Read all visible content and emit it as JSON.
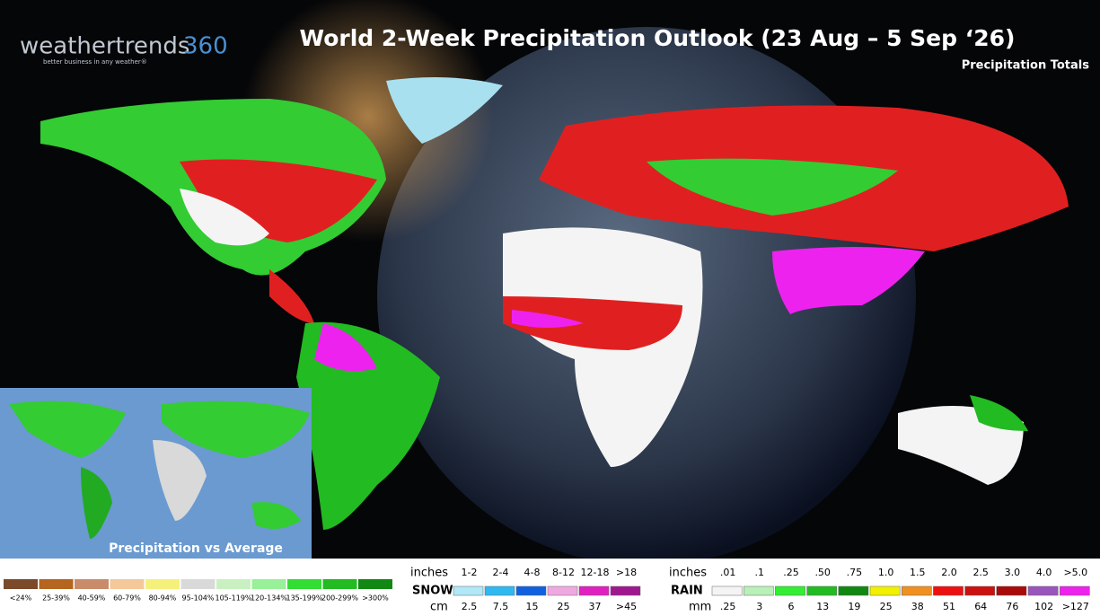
{
  "logo": {
    "brand": "weathertrends",
    "number": "360",
    "tagline": "better business in any weather®"
  },
  "title": "World 2-Week Precipitation Outlook (23 Aug – 5 Sep ‘26)",
  "subtitle": "Precipitation Totals",
  "inset_label": "Precipitation vs Average",
  "anomaly_legend": {
    "labels": [
      "<24%",
      "25-39%",
      "40-59%",
      "60-79%",
      "80-94%",
      "95-104%",
      "105-119%",
      "120-134%",
      "135-199%",
      "200-299%",
      ">300%"
    ],
    "colors": [
      "#7a4a2a",
      "#b5651d",
      "#c98c6a",
      "#f5c89a",
      "#f5f07a",
      "#d9d9d9",
      "#c8f0c0",
      "#98f098",
      "#33dd33",
      "#22bb22",
      "#118811"
    ]
  },
  "snow_legend": {
    "label": "SNOW",
    "inches_label": "inches",
    "cm_label": "cm",
    "inches": [
      "1-2",
      "2-4",
      "4-8",
      "8-12",
      "12-18",
      ">18"
    ],
    "cm": [
      "2.5",
      "7.5",
      "15",
      "25",
      "37",
      ">45"
    ],
    "colors": [
      "#b0e8f8",
      "#30b8f0",
      "#1060e0",
      "#f0a8e0",
      "#e020c0",
      "#a01890"
    ]
  },
  "rain_legend": {
    "label": "RAIN",
    "inches_label": "inches",
    "mm_label": "mm",
    "inches": [
      ".01",
      ".1",
      ".25",
      ".50",
      ".75",
      "1.0",
      "1.5",
      "2.0",
      "2.5",
      "3.0",
      "4.0",
      ">5.0"
    ],
    "mm": [
      ".25",
      "3",
      "6",
      "13",
      "19",
      "25",
      "38",
      "51",
      "64",
      "76",
      "102",
      ">127"
    ],
    "colors": [
      "#f4f4f4",
      "#b8f0b8",
      "#33ee33",
      "#22bb22",
      "#118811",
      "#f0f000",
      "#f09020",
      "#ee1010",
      "#cc1010",
      "#aa0a0a",
      "#9955bb",
      "#ee22ee"
    ]
  }
}
